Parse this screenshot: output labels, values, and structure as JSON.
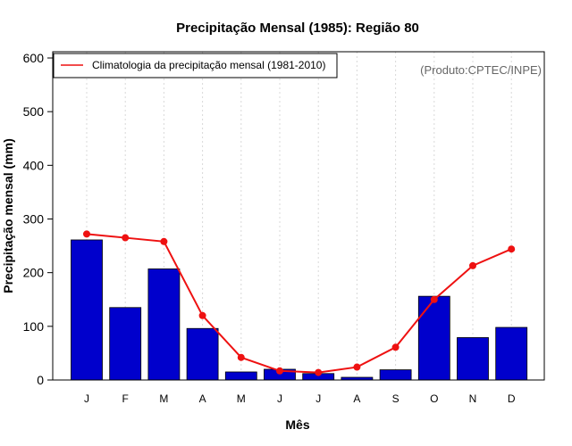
{
  "chart_data": {
    "type": "bar",
    "title": "Precipitação Mensal (1985): Região 80",
    "xlabel": "Mês",
    "ylabel": "Precipitação mensal (mm)",
    "ylim": [
      0,
      600
    ],
    "yticks": [
      0,
      100,
      200,
      300,
      400,
      500,
      600
    ],
    "categories": [
      "J",
      "F",
      "M",
      "A",
      "M",
      "J",
      "J",
      "A",
      "S",
      "O",
      "N",
      "D"
    ],
    "values": [
      261,
      135,
      207,
      96,
      15,
      20,
      12,
      5,
      19,
      156,
      79,
      98
    ],
    "series": [
      {
        "name": "Precipitação mensal 1985",
        "type": "bar",
        "color": "#0000cc",
        "values": [
          261,
          135,
          207,
          96,
          15,
          20,
          12,
          5,
          19,
          156,
          79,
          98
        ]
      },
      {
        "name": "Climatologia da precipitação mensal (1981-2010)",
        "type": "line",
        "color": "#ee1111",
        "values": [
          272,
          265,
          258,
          120,
          42,
          17,
          14,
          24,
          61,
          150,
          213,
          244
        ]
      }
    ],
    "legend": {
      "position": "top-left",
      "entries": [
        "Climatologia da precipitação mensal (1981-2010)"
      ]
    },
    "credit": "(Produto:CPTEC/INPE)",
    "grid": "vertical dotted at month positions"
  }
}
